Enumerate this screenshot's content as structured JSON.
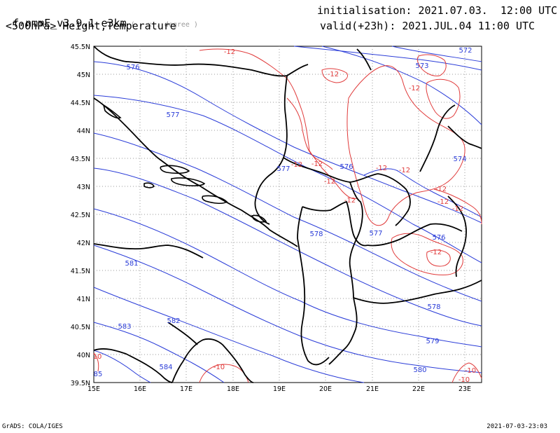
{
  "header": {
    "model": "f-nmmE_v3.9.1-e3km",
    "units": "( . x . degree )",
    "product": "<500hPa> Height,Temperature",
    "init_label": "initialisation:",
    "init_value": "2021.07.03.  12:00 UTC",
    "valid_label": "valid(+23h):",
    "valid_value": "2021.JUL.04 11:00 UTC"
  },
  "footer": {
    "left": "GrADS: COLA/IGES",
    "right": "2021-07-03-23:03"
  },
  "axes": {
    "lon_labels": [
      "15E",
      "16E",
      "17E",
      "18E",
      "19E",
      "20E",
      "21E",
      "22E",
      "23E"
    ],
    "lat_labels": [
      "45.5N",
      "45N",
      "44.5N",
      "44N",
      "43.5N",
      "43N",
      "42.5N",
      "42N",
      "41.5N",
      "41N",
      "40.5N",
      "40N",
      "39.5N"
    ]
  },
  "colors": {
    "height_contour": "#2a3cd8",
    "temperature_contour": "#e03a3a",
    "border": "#000000",
    "grid": "#999999"
  },
  "height_labels": [
    "576",
    "577",
    "577",
    "576",
    "573",
    "572",
    "574",
    "578",
    "577",
    "576",
    "581",
    "583",
    "582",
    "584",
    "578",
    "579",
    "580",
    "85"
  ],
  "temp_labels": [
    "-12",
    "-12",
    "-12",
    "-12",
    "-12",
    "-12",
    "-12",
    "-12",
    "-12",
    "-12",
    "-12",
    "-12",
    "-12",
    "-10",
    "-10",
    "-10",
    "10"
  ]
}
